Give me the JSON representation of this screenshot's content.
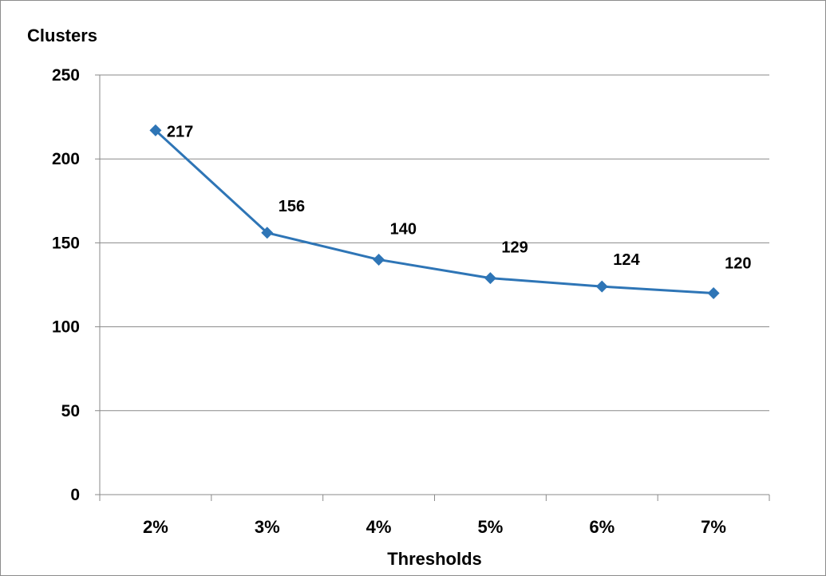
{
  "chart_data": {
    "type": "line",
    "title": "",
    "xlabel": "Thresholds",
    "ylabel": "Clusters",
    "categories": [
      "2%",
      "3%",
      "4%",
      "5%",
      "6%",
      "7%"
    ],
    "series": [
      {
        "values": [
          217,
          156,
          140,
          129,
          124,
          120
        ],
        "color": "#2e75b6",
        "marker": "diamond"
      }
    ],
    "data_labels": [
      "217",
      "156",
      "140",
      "129",
      "124",
      "120"
    ],
    "yticks": [
      0,
      50,
      100,
      150,
      200,
      250
    ],
    "ytick_labels": [
      "0",
      "50",
      "100",
      "150",
      "200",
      "250"
    ],
    "ylim": [
      0,
      250
    ],
    "grid": "horizontal",
    "legend": "none"
  }
}
